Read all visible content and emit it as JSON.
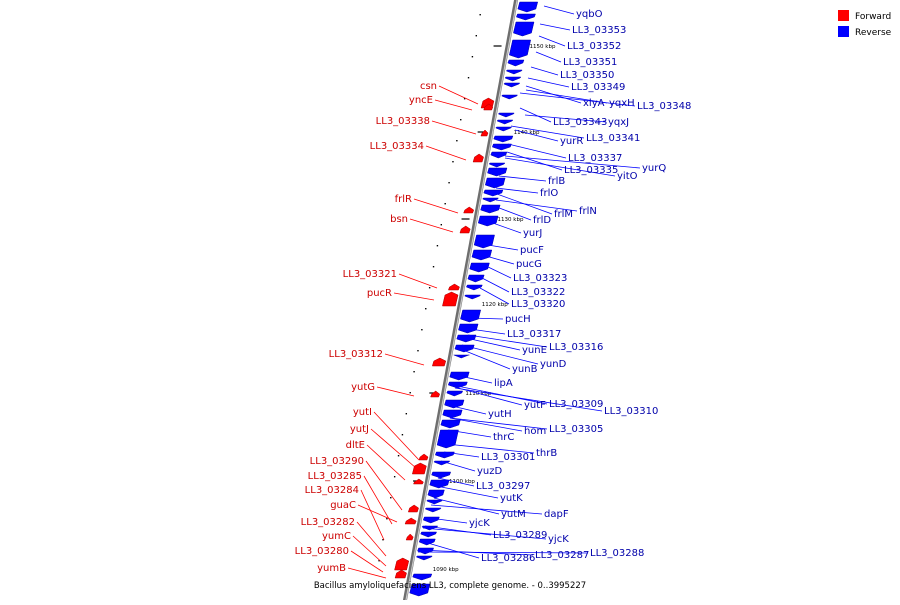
{
  "legend": [
    {
      "label": "Forward",
      "color": "#ff0000"
    },
    {
      "label": "Reverse",
      "color": "#0000ff"
    }
  ],
  "caption": "Bacillus amyloliquefaciens LL3, complete genome. - 0..3995227",
  "colors": {
    "forward": "#ff0000",
    "reverse": "#0000ff",
    "axis": "#808080",
    "forward_label": "#cc0000",
    "reverse_label": "#0000aa"
  },
  "ticks": [
    "1150 kbp",
    "1140 kbp",
    "1130 kbp",
    "1120 kbp",
    "1110 kbp",
    "1100 kbp",
    "1090 kbp"
  ],
  "forward_genes": [
    "csn",
    "yncE",
    "LL3_03338",
    "LL3_03334",
    "frlR",
    "bsn",
    "LL3_03321",
    "pucR",
    "LL3_03312",
    "yutG",
    "yutI",
    "yutJ",
    "dltE",
    "LL3_03290",
    "LL3_03285",
    "LL3_03284",
    "guaC",
    "LL3_03282",
    "yumC",
    "LL3_03280",
    "yumB"
  ],
  "reverse_genes": [
    "yqbO",
    "LL3_03353",
    "LL3_03352",
    "LL3_03351",
    "LL3_03350",
    "LL3_03349",
    "xlyA",
    "yqxH",
    "LL3_03348",
    "LL3_03343",
    "yqxJ",
    "yurR",
    "LL3_03341",
    "LL3_03337",
    "LL3_03335",
    "yitO",
    "yurQ",
    "frlB",
    "frlO",
    "frlM",
    "frlN",
    "frlD",
    "yurJ",
    "pucF",
    "pucG",
    "LL3_03323",
    "LL3_03322",
    "LL3_03320",
    "pucH",
    "LL3_03317",
    "yunE",
    "LL3_03316",
    "yunB",
    "yunD",
    "lipA",
    "yutF",
    "LL3_03309",
    "LL3_03310",
    "yutH",
    "hom",
    "LL3_03305",
    "thrC",
    "thrB",
    "LL3_03301",
    "yuzD",
    "LL3_03297",
    "yutK",
    "yutM",
    "dapF",
    "yjcK",
    "LL3_03289",
    "yjcK",
    "LL3_03286",
    "LL3_03287",
    "LL3_03288"
  ]
}
